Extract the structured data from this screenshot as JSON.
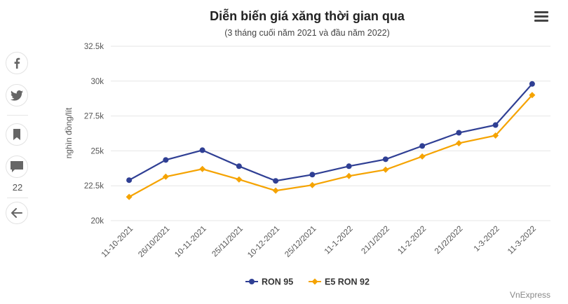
{
  "share": {
    "comment_count": "22"
  },
  "chart_data": {
    "type": "line",
    "title": "Diễn biến giá xăng thời gian qua",
    "subtitle": "(3 tháng cuối năm 2021 và đầu năm 2022)",
    "ylabel": "nghìn đồng/lít",
    "xlabel": "",
    "ylim": [
      20000,
      32500
    ],
    "yticks": [
      "20k",
      "22.5k",
      "25k",
      "27.5k",
      "30k",
      "32.5k"
    ],
    "yticks_values": [
      20000,
      22500,
      25000,
      27500,
      30000,
      32500
    ],
    "categories": [
      "11-10-2021",
      "26/10/2021",
      "10-11-2021",
      "25/11/2021",
      "10-12-2021",
      "25/12/2021",
      "11-1-2022",
      "21/1/2022",
      "11-2-2022",
      "21/2/2022",
      "1-3-2022",
      "11-3-2022"
    ],
    "series": [
      {
        "name": "RON 95",
        "color": "#2f3f94",
        "marker": "circle",
        "values": [
          22900,
          24350,
          25050,
          23900,
          22850,
          23300,
          23900,
          24400,
          25350,
          26300,
          26850,
          29800
        ]
      },
      {
        "name": "E5 RON 92",
        "color": "#f5a300",
        "marker": "diamond",
        "values": [
          21700,
          23150,
          23700,
          22950,
          22150,
          22550,
          23200,
          23650,
          24600,
          25550,
          26100,
          29000
        ]
      }
    ],
    "grid": true,
    "legend_position": "bottom",
    "credit": "VnExpress"
  }
}
